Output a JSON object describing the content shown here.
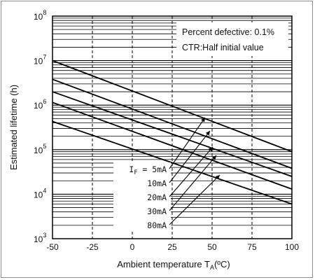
{
  "chart_data": {
    "type": "line",
    "xlabel": {
      "main": "Ambient temperature T",
      "sub": "A",
      "unit": "(ºC)"
    },
    "ylabel": "Estimated lifetime (h)",
    "xlim": [
      -50,
      100
    ],
    "ylim": [
      1000,
      100000000
    ],
    "yscale": "log",
    "grid": true,
    "x_ticks": [
      "-50",
      "-25",
      "0",
      "25",
      "50",
      "75",
      "100"
    ],
    "y_ticks": [
      {
        "exp": 3,
        "label": "10",
        "sup": "3"
      },
      {
        "exp": 4,
        "label": "10",
        "sup": "4"
      },
      {
        "exp": 5,
        "label": "10",
        "sup": "5"
      },
      {
        "exp": 6,
        "label": "10",
        "sup": "6"
      },
      {
        "exp": 7,
        "label": "10",
        "sup": "7"
      },
      {
        "exp": 8,
        "label": "10",
        "sup": "8"
      }
    ],
    "annotations": [
      "Percent defective: 0.1%",
      "CTR:Half initial value"
    ],
    "series": [
      {
        "name": "5mA",
        "prefix": "I",
        "prefix_sub": "F",
        "prefix_eq": " = ",
        "x": [
          -50,
          100
        ],
        "y": [
          10000000,
          90000
        ]
      },
      {
        "name": "10mA",
        "x": [
          -50,
          100
        ],
        "y": [
          3800000,
          38000
        ]
      },
      {
        "name": "20mA",
        "x": [
          -50,
          100
        ],
        "y": [
          2000000,
          25000
        ]
      },
      {
        "name": "30mA",
        "x": [
          -50,
          100
        ],
        "y": [
          1150000,
          13000
        ]
      },
      {
        "name": "80mA",
        "x": [
          -50,
          100
        ],
        "y": [
          430000,
          6000
        ]
      }
    ]
  }
}
